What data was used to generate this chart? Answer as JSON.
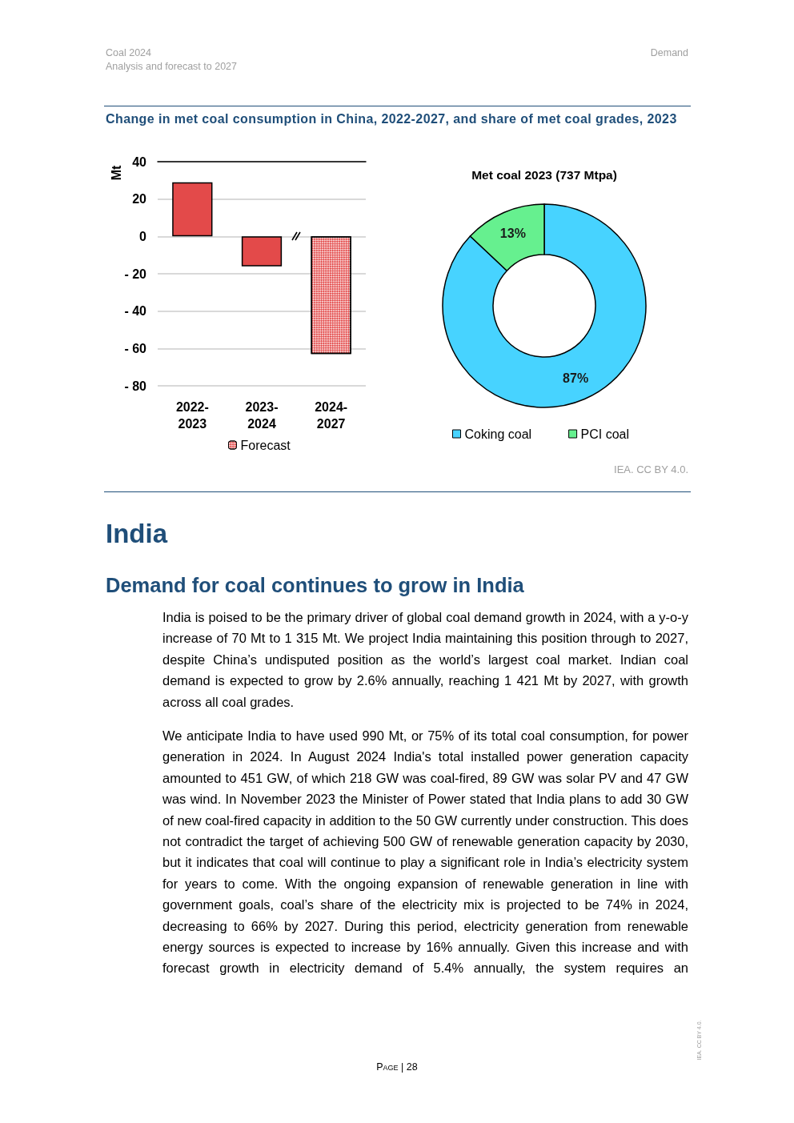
{
  "chart_data": [
    {
      "type": "bar",
      "title": "Change in met coal consumption in China, 2022-2027, and share of met coal grades, 2023",
      "ylabel": "Mt",
      "categories": [
        "2022-2023",
        "2023-2024",
        "2024-2027"
      ],
      "series": [
        {
          "color": "#e34a4a",
          "values": [
            29,
            -16,
            null
          ]
        },
        {
          "name": "Forecast",
          "color": "#e34a4a",
          "values": [
            null,
            null,
            -63
          ]
        }
      ],
      "stacked": true,
      "ylim": [
        -80,
        40
      ],
      "yticks": [
        {
          "value": -80,
          "label": "- 80"
        },
        {
          "value": -60,
          "label": "- 60"
        },
        {
          "value": -40,
          "label": "- 40"
        },
        {
          "value": -20,
          "label": "- 20"
        },
        0,
        20,
        40
      ],
      "grid": "y",
      "legend": "bottom",
      "annotations": [
        "Coal 2024",
        "Analysis and forecast to 2027",
        "Demand"
      ]
    },
    {
      "type": "donut",
      "title": "Met coal 2023 (737 Mtpa)",
      "categories": [
        "Coking coal",
        "PCI coal"
      ],
      "values": [
        87,
        13
      ],
      "colors": [
        "#47d3ff",
        "#66f08f"
      ],
      "value_labels": [
        "87%",
        "13%"
      ],
      "legend": "bottom",
      "annotations": [
        "IEA. CC BY 4.0.",
        "India",
        "Demand for coal continues to grow in India",
        "India is poised to be the primary driver of global coal demand growth in 2024, with a y-o-y increase of 70 Mt to 1 315 Mt. We project India maintaining this position through to 2027, despite China’s undisputed position as the world’s largest coal market. Indian coal demand is expected to grow by 2.6% annually, reaching 1 421 Mt by 2027, with growth across all coal grades.",
        "We anticipate India to have used 990 Mt, or 75% of its total coal consumption, for power generation in 2024. In August 2024 India's total installed power generation capacity amounted to 451 GW, of which 218 GW was coal-fired, 89 GW was solar PV and 47 GW was wind. In November 2023 the Minister of Power stated that India plans to add 30 GW of new coal-fired capacity in addition to the 50 GW currently under construction. This does not contradict the target of achieving 500 GW of renewable generation capacity by 2030, but it indicates that coal will continue to play a significant role in India’s electricity system for years to come. With the ongoing expansion of renewable generation in line with government goals, coal’s share of the electricity mix is projected to be 74% in 2024, decreasing to 66% by 2027. During this period, electricity generation from renewable energy sources is expected to increase by 16% annually. Given this increase and with forecast growth in electricity demand of 5.4% annually, the system requires an",
        "Page | 28",
        "IEA. CC BY 4.0."
      ]
    }
  ]
}
